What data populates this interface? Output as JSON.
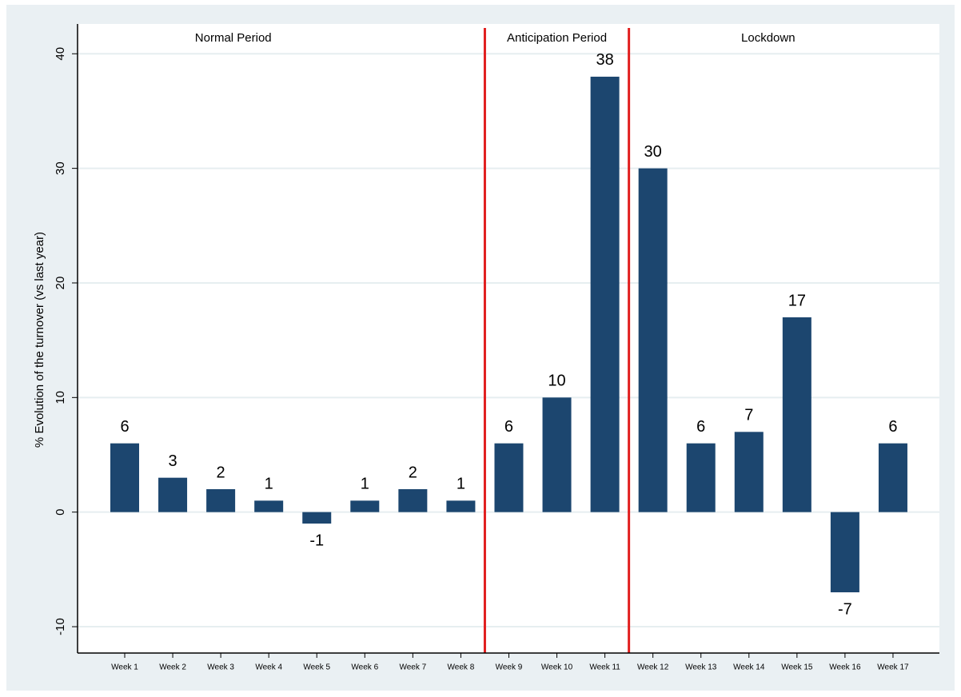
{
  "chart_data": {
    "type": "bar",
    "y_label": "% Evolution of the turnover (vs last year)",
    "categories": [
      "Week 1",
      "Week 2",
      "Week 3",
      "Week 4",
      "Week 5",
      "Week 6",
      "Week 7",
      "Week 8",
      "Week 9",
      "Week 10",
      "Week 11",
      "Week 12",
      "Week 13",
      "Week 14",
      "Week 15",
      "Week 16",
      "Week 17"
    ],
    "values": [
      6,
      3,
      2,
      1,
      -1,
      1,
      2,
      1,
      6,
      10,
      38,
      30,
      6,
      7,
      17,
      -7,
      6
    ],
    "color": "#1c466f",
    "ylim": [
      -12.3,
      42.6
    ],
    "yticks": [
      -10,
      0,
      10,
      20,
      30,
      40
    ],
    "grid": true,
    "periods": [
      {
        "label": "Normal Period",
        "from": "Week 1",
        "to": "Week 8"
      },
      {
        "label": "Anticipation Period",
        "from": "Week 9",
        "to": "Week 11"
      },
      {
        "label": "Lockdown",
        "from": "Week 12",
        "to": "Week 17"
      }
    ],
    "divider_color": "#e11e1e"
  }
}
